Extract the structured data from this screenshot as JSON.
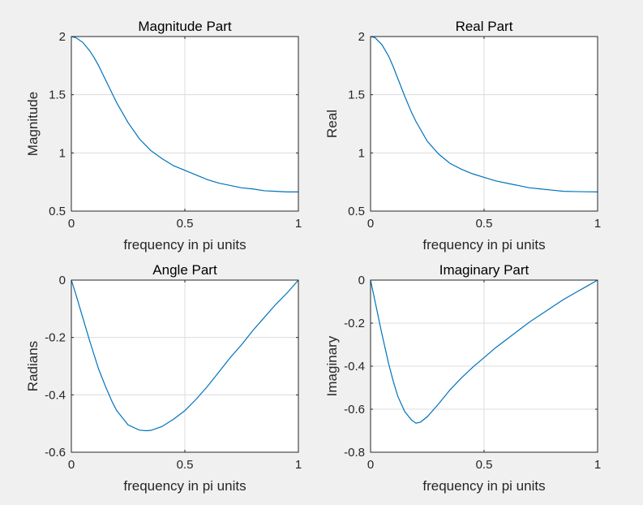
{
  "colors": {
    "background": "#f0f0f0",
    "plot": "#ffffff",
    "series": "#0072bd",
    "grid": "#dcdcdc",
    "axis": "#262626"
  },
  "chart_data": [
    {
      "type": "line",
      "title": "Magnitude Part",
      "xlabel": "frequency in pi units",
      "ylabel": "Magnitude",
      "xlim": [
        0,
        1
      ],
      "ylim": [
        0.5,
        2
      ],
      "xticks": [
        0,
        0.5,
        1
      ],
      "xtick_labels": [
        "0",
        "0.5",
        "1"
      ],
      "yticks": [
        0.5,
        1,
        1.5,
        2
      ],
      "ytick_labels": [
        "0.5",
        "1",
        "1.5",
        "2"
      ],
      "grid": true,
      "series": [
        {
          "x": [
            0,
            0.02,
            0.05,
            0.08,
            0.1,
            0.12,
            0.15,
            0.18,
            0.2,
            0.25,
            0.3,
            0.35,
            0.4,
            0.45,
            0.5,
            0.55,
            0.6,
            0.65,
            0.7,
            0.75,
            0.8,
            0.85,
            0.9,
            0.95,
            1.0
          ],
          "y": [
            2.0,
            1.99,
            1.95,
            1.88,
            1.82,
            1.75,
            1.63,
            1.51,
            1.43,
            1.26,
            1.12,
            1.02,
            0.95,
            0.89,
            0.85,
            0.81,
            0.77,
            0.74,
            0.72,
            0.7,
            0.69,
            0.675,
            0.67,
            0.665,
            0.665
          ]
        }
      ]
    },
    {
      "type": "line",
      "title": "Real Part",
      "xlabel": "frequency in pi units",
      "ylabel": "Real",
      "xlim": [
        0,
        1
      ],
      "ylim": [
        0.5,
        2
      ],
      "xticks": [
        0,
        0.5,
        1
      ],
      "xtick_labels": [
        "0",
        "0.5",
        "1"
      ],
      "yticks": [
        0.5,
        1,
        1.5,
        2
      ],
      "ytick_labels": [
        "0.5",
        "1",
        "1.5",
        "2"
      ],
      "grid": true,
      "series": [
        {
          "x": [
            0,
            0.02,
            0.05,
            0.08,
            0.1,
            0.12,
            0.15,
            0.18,
            0.2,
            0.25,
            0.3,
            0.35,
            0.4,
            0.45,
            0.5,
            0.55,
            0.6,
            0.65,
            0.7,
            0.75,
            0.8,
            0.85,
            0.9,
            0.95,
            1.0
          ],
          "y": [
            2.0,
            1.99,
            1.93,
            1.83,
            1.74,
            1.64,
            1.49,
            1.35,
            1.27,
            1.1,
            0.99,
            0.91,
            0.86,
            0.82,
            0.79,
            0.76,
            0.74,
            0.72,
            0.7,
            0.69,
            0.68,
            0.67,
            0.668,
            0.666,
            0.665
          ]
        }
      ]
    },
    {
      "type": "line",
      "title": "Angle Part",
      "xlabel": "frequency in pi units",
      "ylabel": "Radians",
      "xlim": [
        0,
        1
      ],
      "ylim": [
        -0.6,
        0
      ],
      "xticks": [
        0,
        0.5,
        1
      ],
      "xtick_labels": [
        "0",
        "0.5",
        "1"
      ],
      "yticks": [
        -0.6,
        -0.4,
        -0.2,
        0
      ],
      "ytick_labels": [
        "-0.6",
        "-0.4",
        "-0.2",
        "0"
      ],
      "grid": true,
      "series": [
        {
          "x": [
            0,
            0.02,
            0.05,
            0.08,
            0.1,
            0.12,
            0.15,
            0.18,
            0.2,
            0.25,
            0.3,
            0.33,
            0.35,
            0.4,
            0.45,
            0.5,
            0.55,
            0.6,
            0.65,
            0.7,
            0.75,
            0.8,
            0.85,
            0.9,
            0.95,
            1.0
          ],
          "y": [
            0,
            -0.05,
            -0.13,
            -0.21,
            -0.26,
            -0.31,
            -0.37,
            -0.425,
            -0.455,
            -0.505,
            -0.523,
            -0.525,
            -0.524,
            -0.51,
            -0.485,
            -0.455,
            -0.415,
            -0.37,
            -0.32,
            -0.27,
            -0.225,
            -0.175,
            -0.13,
            -0.085,
            -0.045,
            0
          ]
        }
      ]
    },
    {
      "type": "line",
      "title": "Imaginary Part",
      "xlabel": "frequency in pi units",
      "ylabel": "Imaginary",
      "xlim": [
        0,
        1
      ],
      "ylim": [
        -0.8,
        0
      ],
      "xticks": [
        0,
        0.5,
        1
      ],
      "xtick_labels": [
        "0",
        "0.5",
        "1"
      ],
      "yticks": [
        -0.8,
        -0.6,
        -0.4,
        -0.2,
        0
      ],
      "ytick_labels": [
        "-0.8",
        "-0.6",
        "-0.4",
        "-0.2",
        "0"
      ],
      "grid": true,
      "series": [
        {
          "x": [
            0,
            0.02,
            0.05,
            0.08,
            0.1,
            0.12,
            0.15,
            0.18,
            0.2,
            0.22,
            0.25,
            0.3,
            0.35,
            0.4,
            0.45,
            0.5,
            0.55,
            0.6,
            0.65,
            0.7,
            0.75,
            0.8,
            0.85,
            0.9,
            0.95,
            1.0
          ],
          "y": [
            0,
            -0.1,
            -0.25,
            -0.39,
            -0.47,
            -0.54,
            -0.61,
            -0.65,
            -0.665,
            -0.66,
            -0.635,
            -0.575,
            -0.51,
            -0.455,
            -0.405,
            -0.36,
            -0.315,
            -0.275,
            -0.235,
            -0.195,
            -0.16,
            -0.125,
            -0.09,
            -0.06,
            -0.03,
            0
          ]
        }
      ]
    }
  ]
}
